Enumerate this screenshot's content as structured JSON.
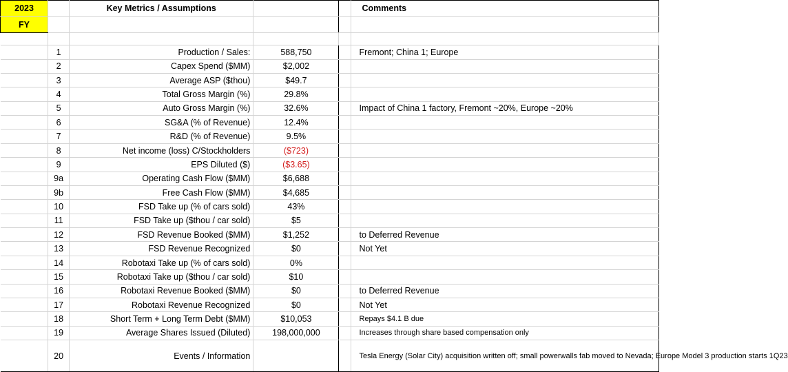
{
  "header": {
    "year": "2023",
    "fy": "FY",
    "metrics_title": "Key Metrics / Assumptions",
    "comments_title": "Comments"
  },
  "rows": [
    {
      "num": "1",
      "label": "Production / Sales:",
      "value": "588,750",
      "comment": "Fremont; China 1; Europe"
    },
    {
      "num": "2",
      "label": "Capex Spend ($MM)",
      "value": "$2,002",
      "comment": ""
    },
    {
      "num": "3",
      "label": "Average ASP ($thou)",
      "value": "$49.7",
      "comment": ""
    },
    {
      "num": "4",
      "label": "Total Gross Margin (%)",
      "value": "29.8%",
      "comment": ""
    },
    {
      "num": "5",
      "label": "Auto Gross Margin (%)",
      "value": "32.6%",
      "comment": "Impact of China 1 factory, Fremont ~20%, Europe ~20%"
    },
    {
      "num": "6",
      "label": "SG&A (% of Revenue)",
      "value": "12.4%",
      "comment": ""
    },
    {
      "num": "7",
      "label": "R&D (% of Revenue)",
      "value": "9.5%",
      "comment": ""
    },
    {
      "num": "8",
      "label": "Net income (loss) C/Stockholders",
      "value": "($723)",
      "comment": ""
    },
    {
      "num": "9",
      "label": "EPS Diluted ($)",
      "value": "($3.65)",
      "comment": ""
    },
    {
      "num": "9a",
      "label": "Operating Cash Flow ($MM)",
      "value": "$6,688",
      "comment": ""
    },
    {
      "num": "9b",
      "label": "Free Cash Flow ($MM)",
      "value": "$4,685",
      "comment": ""
    },
    {
      "num": "10",
      "label": "FSD Take up (% of cars sold)",
      "value": "43%",
      "comment": ""
    },
    {
      "num": "11",
      "label": "FSD Take up ($thou / car sold)",
      "value": "$5",
      "comment": ""
    },
    {
      "num": "12",
      "label": "FSD Revenue Booked ($MM)",
      "value": "$1,252",
      "comment": "to Deferred Revenue"
    },
    {
      "num": "13",
      "label": "FSD Revenue Recognized",
      "value": "$0",
      "comment": "Not Yet"
    },
    {
      "num": "14",
      "label": "Robotaxi Take up (% of cars sold)",
      "value": "0%",
      "comment": ""
    },
    {
      "num": "15",
      "label": "Robotaxi Take up ($thou / car sold)",
      "value": "$10",
      "comment": ""
    },
    {
      "num": "16",
      "label": "Robotaxi Revenue Booked ($MM)",
      "value": "$0",
      "comment": "to Deferred Revenue"
    },
    {
      "num": "17",
      "label": "Robotaxi Revenue Recognized",
      "value": "$0",
      "comment": "Not Yet"
    },
    {
      "num": "18",
      "label": "Short Term + Long Term Debt ($MM)",
      "value": "$10,053",
      "comment": "Repays $4.1 B due"
    },
    {
      "num": "19",
      "label": "Average Shares Issued (Diluted)",
      "value": "198,000,000",
      "comment": "Increases through share based compensation only"
    },
    {
      "num": "20",
      "label": "Events / Information",
      "value": "",
      "comment": "Tesla Energy (Solar City) acquisition written off; small powerwalls fab moved to Nevada; Europe Model 3 production starts 1Q23"
    }
  ],
  "colors": {
    "highlight": "#ffff00",
    "negative": "#d42020"
  }
}
